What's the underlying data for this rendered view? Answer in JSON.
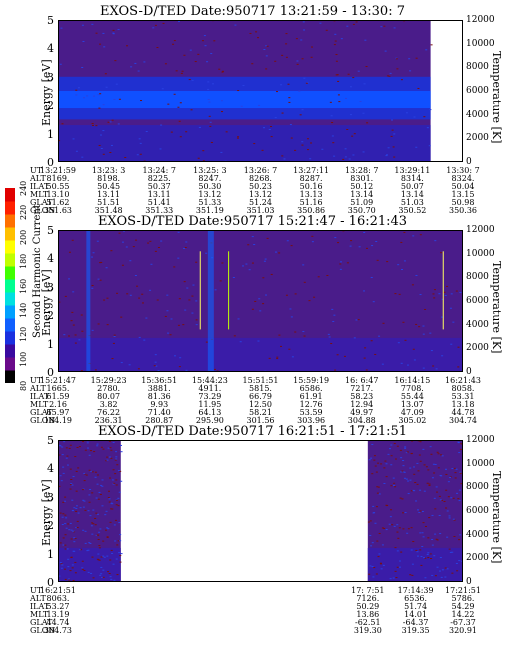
{
  "colorbar": {
    "label": "Second Harmonic Current",
    "ticks": [
      "80",
      "100",
      "120",
      "140",
      "160",
      "180",
      "200",
      "220",
      "240"
    ],
    "colors": [
      "#000000",
      "#6a0a8a",
      "#3a0aa0",
      "#1a30e0",
      "#1060ff",
      "#00a0ff",
      "#00e0e0",
      "#00ff90",
      "#40ff00",
      "#c0ff00",
      "#ffff00",
      "#ffc000",
      "#ff7000",
      "#ff2000",
      "#e00000"
    ]
  },
  "chart_data": [
    {
      "type": "heatmap",
      "title": "EXOS-D/TED   Date:950717  13:21:59 - 13:30: 7",
      "ylabel": "Energy [eV]",
      "y2label": "Temperature [K]",
      "ylim": [
        0,
        5
      ],
      "y2lim": [
        0,
        12000
      ],
      "yticks": [
        "0",
        "1",
        "2",
        "3",
        "4",
        "5"
      ],
      "y2ticks": [
        "0",
        "2000",
        "4000",
        "6000",
        "8000",
        "10000",
        "12000"
      ],
      "data_until_fraction": 0.92,
      "table": {
        "rows": [
          "UT",
          "ALT",
          "ILAT",
          "MLT",
          "GLAT",
          "GLON"
        ],
        "columns": [
          [
            "13:21:59",
            "8169.",
            "50.55",
            "13.10",
            "51.62",
            "351.63"
          ],
          [
            "13:23: 3",
            "8198.",
            "50.45",
            "13.11",
            "51.51",
            "351.48"
          ],
          [
            "13:24: 7",
            "8225.",
            "50.37",
            "13.11",
            "51.41",
            "351.33"
          ],
          [
            "13:25: 3",
            "8247.",
            "50.30",
            "13.12",
            "51.33",
            "351.19"
          ],
          [
            "13:26: 7",
            "8268.",
            "50.23",
            "13.12",
            "51.24",
            "351.03"
          ],
          [
            "13:27:11",
            "8287.",
            "50.16",
            "13.13",
            "51.16",
            "350.86"
          ],
          [
            "13:28: 7",
            "8301.",
            "50.12",
            "13.14",
            "51.09",
            "350.70"
          ],
          [
            "13:29:11",
            "8314.",
            "50.07",
            "13.14",
            "51.03",
            "350.52"
          ],
          [
            "13:30: 7",
            "8324.",
            "50.04",
            "13.15",
            "50.98",
            "350.36"
          ]
        ]
      }
    },
    {
      "type": "heatmap",
      "title": "EXOS-D/TED   Date:950717  15:21:47 - 16:21:43",
      "ylabel": "Energy [eV]",
      "y2label": "Temperature [K]",
      "ylim": [
        0,
        5
      ],
      "y2lim": [
        0,
        12000
      ],
      "yticks": [
        "0",
        "1",
        "2",
        "3",
        "4",
        "5"
      ],
      "y2ticks": [
        "0",
        "2000",
        "4000",
        "6000",
        "8000",
        "10000",
        "12000"
      ],
      "table": {
        "rows": [
          "UT",
          "ALT",
          "ILAT",
          "MLT",
          "GLAT",
          "GLON"
        ],
        "columns": [
          [
            "15:21:47",
            "1665.",
            "61.59",
            "2.16",
            "65.97",
            "184.19"
          ],
          [
            "15:29:23",
            "2780.",
            "80.07",
            "3.82",
            "76.22",
            "236.31"
          ],
          [
            "15:36:51",
            "3881.",
            "81.36",
            "9.93",
            "71.40",
            "280.87"
          ],
          [
            "15:44:23",
            "4911.",
            "73.29",
            "11.95",
            "64.13",
            "295.90"
          ],
          [
            "15:51:51",
            "5815.",
            "66.79",
            "12.50",
            "58.21",
            "301.56"
          ],
          [
            "15:59:19",
            "6586.",
            "61.91",
            "12.76",
            "53.59",
            "303.96"
          ],
          [
            "16: 6:47",
            "7217.",
            "58.23",
            "12.94",
            "49.97",
            "304.88"
          ],
          [
            "16:14:15",
            "7708.",
            "55.44",
            "13.07",
            "47.09",
            "305.02"
          ],
          [
            "16:21:43",
            "8058.",
            "53.31",
            "13.18",
            "44.78",
            "304.74"
          ]
        ]
      }
    },
    {
      "type": "heatmap",
      "title": "EXOS-D/TED   Date:950717  16:21:51 - 17:21:51",
      "ylabel": "Energy [eV]",
      "y2label": "Temperature [K]",
      "ylim": [
        0,
        5
      ],
      "y2lim": [
        0,
        12000
      ],
      "yticks": [
        "0",
        "1",
        "2",
        "3",
        "4",
        "5"
      ],
      "y2ticks": [
        "0",
        "2000",
        "4000",
        "6000",
        "8000",
        "10000",
        "12000"
      ],
      "data_ranges": [
        [
          0,
          0.155
        ],
        [
          0.765,
          1.0
        ]
      ],
      "table": {
        "rows": [
          "UT",
          "ALT",
          "ILAT",
          "MLT",
          "GLAT",
          "GLON"
        ],
        "columns": [
          [
            "16:21:51",
            "8063.",
            "53.27",
            "13.19",
            "44.74",
            "304.73"
          ],
          [
            "17: 7:51",
            "7126.",
            "50.29",
            "13.86",
            "-62.51",
            "319.30"
          ],
          [
            "17:14:39",
            "6536.",
            "51.74",
            "14.01",
            "-64.37",
            "319.35"
          ],
          [
            "17:21:51",
            "5786.",
            "54.29",
            "14.22",
            "-67.37",
            "320.91"
          ]
        ],
        "column_positions": [
          0,
          0.765,
          0.883,
          1.0
        ]
      }
    }
  ]
}
